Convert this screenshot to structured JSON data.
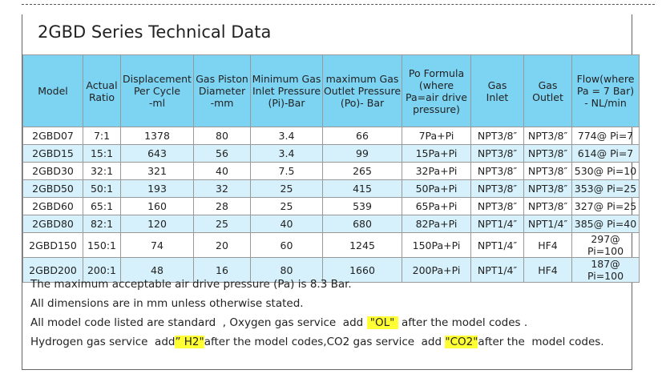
{
  "header": {
    "title": "2GBD Series Technical Data"
  },
  "table": {
    "columns": [
      "Model",
      "Actual\nRatio",
      "Displacement\nPer Cycle\n-ml",
      "Gas Piston\nDiameter\n-mm",
      "Minimum Gas\nInlet Pressure\n(Pi)-Bar",
      "maximum Gas\nOutlet Pressure\n(Po)- Bar",
      "Po Formula\n(where\nPa=air drive\npressure)",
      "Gas\nInlet",
      "Gas\nOutlet",
      "Flow(where\nPa = 7 Bar)\n- NL/min"
    ],
    "rows": [
      [
        "2GBD07",
        "7:1",
        1378,
        80,
        3.4,
        66,
        "7Pa+Pi",
        "NPT3/8″",
        "NPT3/8″",
        "774@ Pi=7"
      ],
      [
        "2GBD15",
        "15:1",
        643,
        56,
        3.4,
        99,
        "15Pa+Pi",
        "NPT3/8″",
        "NPT3/8″",
        "614@ Pi=7"
      ],
      [
        "2GBD30",
        "32:1",
        321,
        40,
        7.5,
        265,
        "32Pa+Pi",
        "NPT3/8″",
        "NPT3/8″",
        "530@ Pi=10"
      ],
      [
        "2GBD50",
        "50:1",
        193,
        32,
        25,
        415,
        "50Pa+Pi",
        "NPT3/8″",
        "NPT3/8″",
        "353@ Pi=25"
      ],
      [
        "2GBD60",
        "65:1",
        160,
        28,
        25,
        539,
        "65Pa+Pi",
        "NPT3/8″",
        "NPT3/8″",
        "327@ Pi=25"
      ],
      [
        "2GBD80",
        "82:1",
        120,
        25,
        40,
        680,
        "82Pa+Pi",
        "NPT1/4″",
        "NPT1/4″",
        "385@ Pi=40"
      ],
      [
        "2GBD150",
        "150:1",
        74,
        20,
        60,
        1245,
        "150Pa+Pi",
        "NPT1/4″",
        "HF4",
        "297@ Pi=100"
      ],
      [
        "2GBD200",
        "200:1",
        48,
        16,
        80,
        1660,
        "200Pa+Pi",
        "NPT1/4″",
        "HF4",
        "187@ Pi=100"
      ]
    ]
  },
  "notes": [
    [
      "The maximum acceptable air drive pressure (Pa) is 8.3 Bar."
    ],
    [
      "All dimensions are in mm unless otherwise stated."
    ],
    [
      "All model code listed are standard  , Oxygen gas service  add ",
      " \"OL\" ",
      " after the model codes ."
    ],
    [
      "Hydrogen gas service  add",
      "” H2\"",
      "after the model codes,CO2 gas service  add ",
      "\"CO2\"",
      "after the  model codes."
    ]
  ]
}
